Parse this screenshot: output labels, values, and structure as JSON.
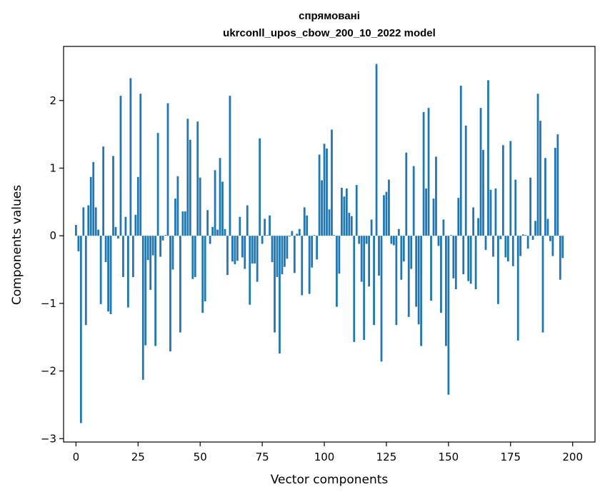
{
  "chart_data": {
    "type": "bar",
    "title": "спрямовані",
    "subtitle": "ukrconll_upos_cbow_200_10_2022 model",
    "xlabel": "Vector components",
    "ylabel": "Components values",
    "xlim": [
      -5,
      209
    ],
    "ylim": [
      -3.05,
      2.8
    ],
    "xticks": [
      0,
      25,
      50,
      75,
      100,
      125,
      150,
      175,
      200
    ],
    "yticks": [
      -3,
      -2,
      -1,
      0,
      1,
      2
    ],
    "xtick_labels": [
      "0",
      "25",
      "50",
      "75",
      "100",
      "125",
      "150",
      "175",
      "200"
    ],
    "ytick_labels": [
      "−3",
      "−2",
      "−1",
      "0",
      "1",
      "2"
    ],
    "bar_color": "#1f77b4",
    "grid": false,
    "values": [
      0.16,
      -0.23,
      -2.77,
      0.42,
      -1.32,
      0.45,
      0.87,
      1.09,
      0.42,
      0.09,
      -1.01,
      1.32,
      -0.39,
      -1.12,
      -1.16,
      1.18,
      0.13,
      -0.04,
      2.07,
      -0.61,
      0.28,
      -1.06,
      2.33,
      -0.61,
      0.31,
      0.87,
      2.1,
      -2.13,
      -1.62,
      -0.36,
      -0.8,
      -0.29,
      -1.63,
      1.52,
      -0.31,
      -0.07,
      0.01,
      1.96,
      -1.71,
      -0.5,
      0.55,
      0.88,
      -1.43,
      0.36,
      0.36,
      1.73,
      1.42,
      -0.64,
      -0.61,
      1.69,
      0.86,
      -1.14,
      -0.97,
      0.38,
      -0.12,
      0.13,
      0.97,
      0.09,
      1.15,
      0.8,
      0.1,
      -0.58,
      2.07,
      -0.38,
      -0.42,
      -0.37,
      0.28,
      -0.32,
      -0.49,
      0.45,
      -1.02,
      -0.41,
      -0.41,
      -0.68,
      1.44,
      -0.12,
      0.25,
      0.01,
      0.3,
      -0.39,
      -1.43,
      -0.61,
      -1.74,
      -0.57,
      -0.46,
      -0.34,
      -0.01,
      0.07,
      -0.55,
      0.03,
      0.1,
      -0.88,
      0.42,
      0.3,
      -0.86,
      -0.47,
      0.01,
      -0.35,
      1.2,
      0.82,
      1.36,
      1.29,
      0.39,
      1.57,
      0.01,
      -1.05,
      -0.56,
      0.71,
      0.58,
      0.7,
      0.34,
      0.29,
      -1.57,
      0.75,
      -0.12,
      -0.68,
      -1.54,
      -0.12,
      -0.75,
      0.24,
      -1.32,
      2.54,
      -0.59,
      -1.86,
      0.6,
      0.65,
      0.83,
      -0.12,
      -0.14,
      -1.32,
      0.1,
      -0.65,
      -0.38,
      1.23,
      -1.2,
      -0.49,
      1.03,
      -1.05,
      -1.31,
      -1.63,
      1.83,
      0.7,
      1.89,
      -0.96,
      0.55,
      1.17,
      -0.15,
      -1.14,
      0.24,
      -1.63,
      -2.35,
      0.01,
      -0.63,
      -0.79,
      0.56,
      2.22,
      -0.57,
      1.63,
      -0.67,
      -0.71,
      0.42,
      -0.79,
      0.26,
      1.89,
      1.27,
      -0.21,
      2.3,
      0.68,
      -0.31,
      0.7,
      -1.01,
      -0.05,
      1.34,
      -0.32,
      -0.38,
      1.4,
      -0.45,
      0.83,
      -1.55,
      -0.3,
      0.02,
      0.01,
      -0.19,
      0.86,
      -0.06,
      0.22,
      2.1,
      1.7,
      -1.43,
      1.15,
      0.25,
      -0.08,
      -0.3,
      1.3,
      1.5,
      -0.65,
      -0.33
    ]
  }
}
